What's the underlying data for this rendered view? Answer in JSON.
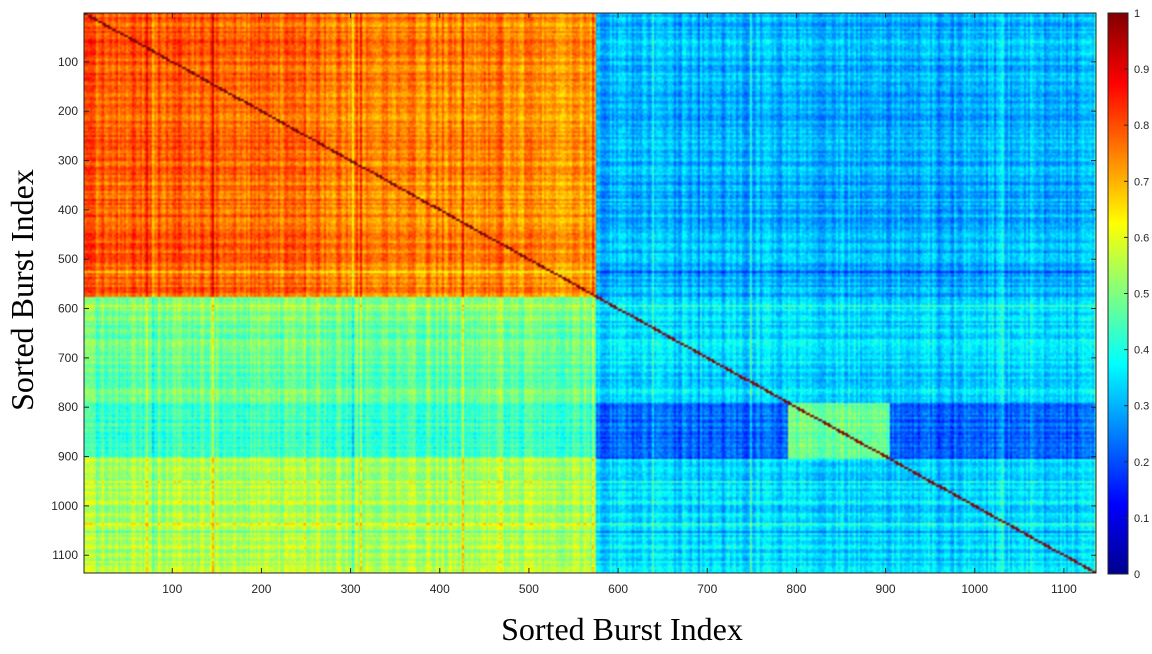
{
  "chart_data": {
    "type": "heatmap",
    "title": "",
    "xlabel": "Sorted Burst Index",
    "ylabel": "Sorted Burst Index",
    "xlim": [
      1,
      1136
    ],
    "ylim": [
      1,
      1136
    ],
    "y_direction": "top-to-bottom",
    "x_ticks": [
      100,
      200,
      300,
      400,
      500,
      600,
      700,
      800,
      900,
      1000,
      1100
    ],
    "y_ticks": [
      100,
      200,
      300,
      400,
      500,
      600,
      700,
      800,
      900,
      1000,
      1100
    ],
    "colorbar": {
      "colormap": "jet",
      "range": [
        0,
        1
      ],
      "ticks": [
        0,
        0.1,
        0.2,
        0.3,
        0.4,
        0.5,
        0.6,
        0.7,
        0.8,
        0.9,
        1
      ],
      "tick_labels": [
        "0",
        "0.1",
        "0.2",
        "0.3",
        "0.4",
        "0.5",
        "0.6",
        "0.7",
        "0.8",
        "0.9",
        "1"
      ],
      "placement": "right"
    },
    "diagonal_value": 1,
    "block_boundaries": [
      575,
      790,
      905
    ],
    "blocks": [
      {
        "rows": [
          1,
          575
        ],
        "cols": [
          1,
          575
        ],
        "mean_value": 0.78
      },
      {
        "rows": [
          1,
          575
        ],
        "cols": [
          576,
          1136
        ],
        "mean_value": 0.3
      },
      {
        "rows": [
          576,
          1136
        ],
        "cols": [
          1,
          575
        ],
        "mean_value": 0.52
      },
      {
        "rows": [
          576,
          1136
        ],
        "cols": [
          576,
          1136
        ],
        "mean_value": 0.33
      },
      {
        "rows": [
          790,
          905
        ],
        "cols": [
          790,
          905
        ],
        "mean_value": 0.48
      }
    ]
  }
}
